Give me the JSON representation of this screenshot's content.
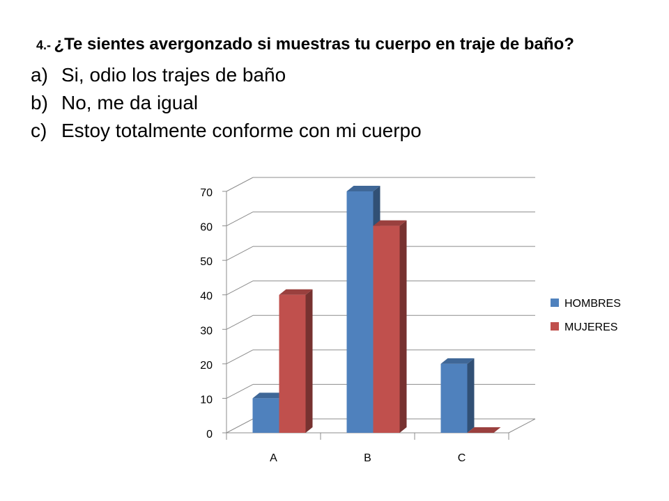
{
  "question": {
    "number": "4.-",
    "text": "¿Te sientes avergonzado si muestras tu cuerpo en traje de baño?"
  },
  "options": [
    {
      "letter": "a)",
      "text": "Si, odio los trajes de baño"
    },
    {
      "letter": "b)",
      "text": "No, me da igual"
    },
    {
      "letter": "c)",
      "text": "Estoy totalmente conforme con mi cuerpo"
    }
  ],
  "chart_data": {
    "type": "bar",
    "style": "3d-clustered-column",
    "categories": [
      "A",
      "B",
      "C"
    ],
    "series": [
      {
        "name": "HOMBRES",
        "values": [
          10,
          70,
          20
        ],
        "color": "#4F81BD"
      },
      {
        "name": "MUJERES",
        "values": [
          40,
          60,
          0
        ],
        "color": "#C0504D"
      }
    ],
    "ylim": [
      0,
      70
    ],
    "yticks": [
      0,
      10,
      20,
      30,
      40,
      50,
      60,
      70
    ],
    "grid": true,
    "legend": "right"
  }
}
